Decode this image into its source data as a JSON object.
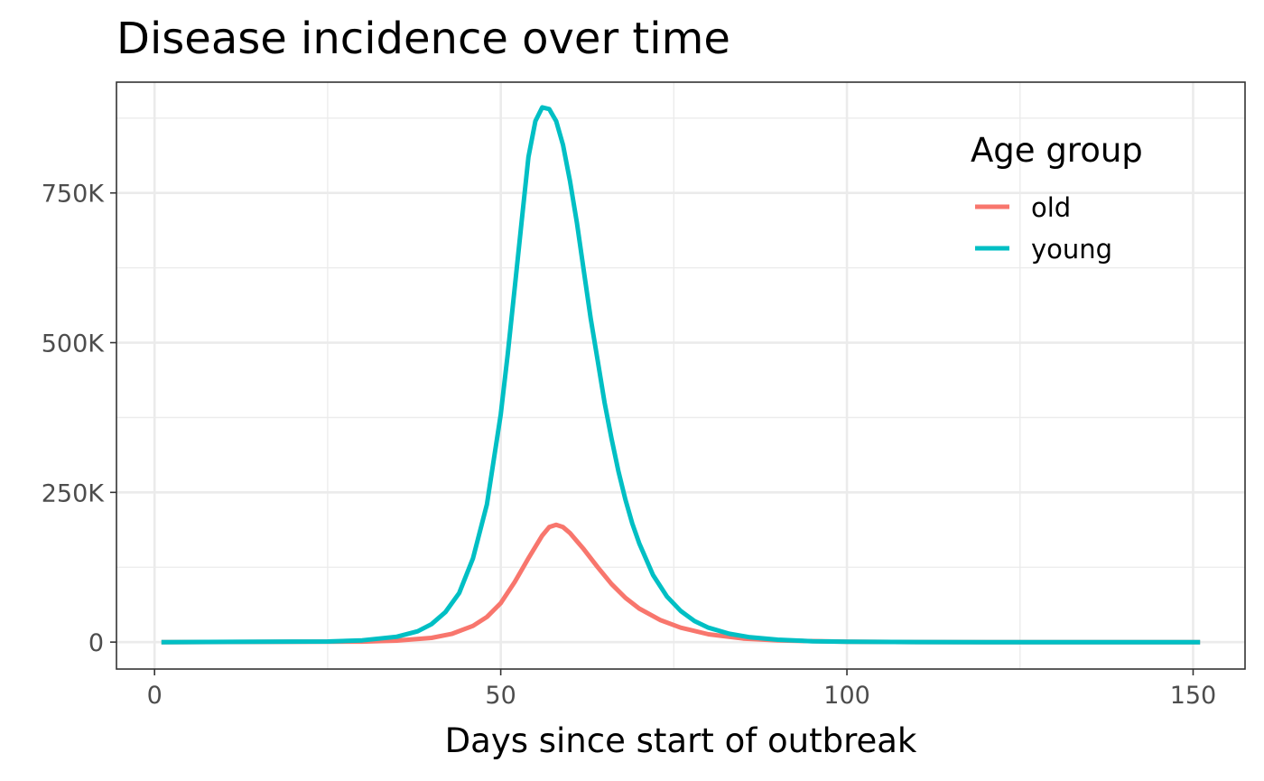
{
  "chart_data": {
    "type": "line",
    "title": "Disease incidence over time",
    "xlabel": "Days since start of outbreak",
    "ylabel": "",
    "xlim": [
      -5.5,
      157.5
    ],
    "ylim": [
      -45000,
      935000
    ],
    "x_ticks": [
      0,
      50,
      100,
      150
    ],
    "x_tick_labels": [
      "0",
      "50",
      "100",
      "150"
    ],
    "x_minor_ticks": [
      25,
      75,
      125
    ],
    "y_ticks": [
      0,
      250000,
      500000,
      750000
    ],
    "y_tick_labels": [
      "0",
      "250K",
      "500K",
      "750K"
    ],
    "y_minor_ticks": [
      125000,
      375000,
      625000,
      875000
    ],
    "grid": true,
    "legend": {
      "title": "Age group",
      "position": "top-right"
    },
    "series": [
      {
        "name": "old",
        "color": "#F8766D",
        "x": [
          1,
          30,
          35,
          40,
          43,
          46,
          48,
          50,
          52,
          54,
          56,
          57,
          58,
          59,
          60,
          62,
          64,
          66,
          68,
          70,
          73,
          76,
          80,
          85,
          90,
          100,
          110,
          120,
          151
        ],
        "values": [
          0,
          800,
          2500,
          7000,
          14000,
          27000,
          42000,
          65000,
          100000,
          140000,
          178000,
          192000,
          196000,
          192000,
          182000,
          155000,
          125000,
          97000,
          74000,
          56000,
          37000,
          24000,
          13000,
          6000,
          2800,
          600,
          100,
          0,
          0
        ]
      },
      {
        "name": "young",
        "color": "#00BFC4",
        "x": [
          1,
          25,
          30,
          35,
          38,
          40,
          42,
          44,
          46,
          48,
          50,
          51,
          52,
          53,
          54,
          55,
          56,
          57,
          58,
          59,
          60,
          61,
          62,
          63,
          64,
          65,
          66,
          67,
          68,
          69,
          70,
          72,
          74,
          76,
          78,
          80,
          83,
          86,
          90,
          95,
          100,
          110,
          120,
          151
        ],
        "values": [
          0,
          1000,
          3000,
          9000,
          18000,
          30000,
          50000,
          82000,
          140000,
          230000,
          380000,
          480000,
          590000,
          700000,
          810000,
          870000,
          893000,
          890000,
          870000,
          830000,
          770000,
          700000,
          620000,
          540000,
          470000,
          400000,
          340000,
          285000,
          238000,
          198000,
          165000,
          112000,
          76000,
          52000,
          35000,
          24000,
          14000,
          8000,
          4000,
          1500,
          500,
          100,
          0,
          0
        ]
      }
    ]
  }
}
